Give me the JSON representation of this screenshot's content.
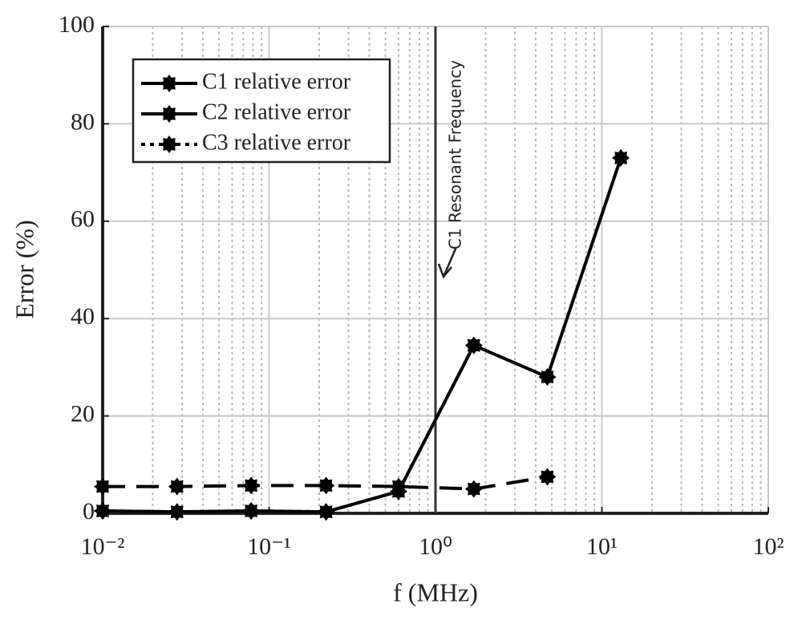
{
  "chart_data": {
    "type": "line",
    "x_label": "f (MHz)",
    "y_label": "Error (%)",
    "x": [
      0.01,
      0.028,
      0.078,
      0.22,
      0.6,
      1.7,
      4.7,
      13
    ],
    "series": [
      {
        "name": "C1 relative error",
        "color": "#000000",
        "dash": "solid",
        "values": [
          0.5,
          0.3,
          0.5,
          0.3,
          4.5,
          34.5,
          28,
          73
        ]
      },
      {
        "name": "C2 relative error",
        "color": "#000000",
        "dash": "dash",
        "values": [
          5.5,
          5.5,
          5.7,
          5.7,
          5.5,
          5,
          7.5,
          null
        ]
      },
      {
        "name": "C3 relative error",
        "color": "#000000",
        "dash": "dot",
        "values": [
          0.5,
          0.3,
          0.5,
          0.3,
          4.5,
          34.5,
          null,
          null
        ]
      }
    ],
    "xlog": true,
    "xlim": [
      0.01,
      100
    ],
    "xticks": [
      {
        "value": 0.01,
        "label": "10⁻²"
      },
      {
        "value": 0.1,
        "label": "10⁻¹"
      },
      {
        "value": 1,
        "label": "10⁰"
      },
      {
        "value": 10,
        "label": "10¹"
      },
      {
        "value": 100,
        "label": "10²"
      }
    ],
    "ylim": [
      0,
      100
    ],
    "yticks": [
      0,
      20,
      40,
      60,
      80,
      100
    ],
    "grid": true,
    "legend": "upper-left",
    "annotation": {
      "text": "C1 Resonant Frequency",
      "x": 1
    }
  }
}
